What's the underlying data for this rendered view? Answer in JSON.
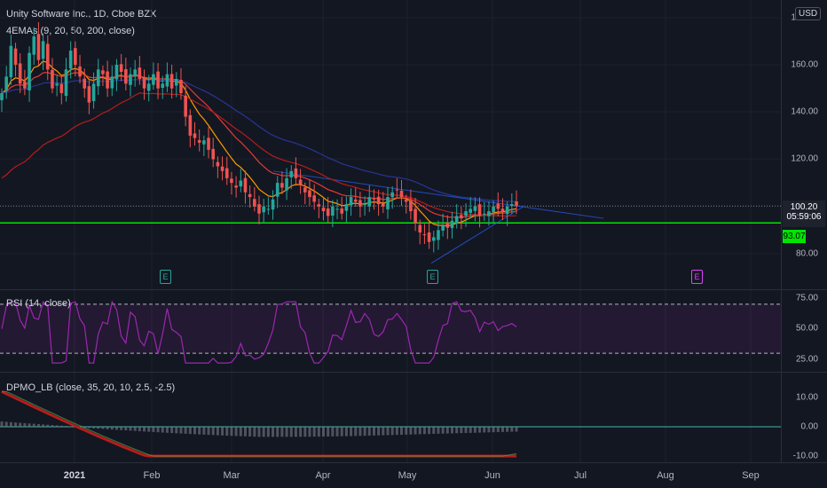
{
  "header": {
    "symbol_line": "Unity Software Inc., 1D, Cboe BZX",
    "indicator": "4EMAs (9, 20, 50, 200, close)"
  },
  "currency_button": "USD",
  "price_axis": {
    "ticks": [
      "180.00",
      "160.00",
      "140.00",
      "120.00",
      "80.00"
    ],
    "last_price": "100.20",
    "countdown": "05:59:06",
    "support_price": "93.07"
  },
  "rsi": {
    "label": "RSI (14, close)",
    "ticks": [
      "75.00",
      "50.00",
      "25.00"
    ]
  },
  "dpmo": {
    "label": "DPMO_LB (close, 35, 20, 10, 2.5, -2.5)",
    "ticks": [
      "10.00",
      "0.00",
      "-10.00"
    ]
  },
  "time_axis": [
    "2021",
    "Feb",
    "Mar",
    "Apr",
    "May",
    "Jun",
    "Jul",
    "Aug",
    "Sep"
  ],
  "earnings_markers": [
    {
      "label": "E",
      "color": "#26a69a"
    },
    {
      "label": "E",
      "color": "#26a69a"
    },
    {
      "label": "E",
      "color": "#e040fb"
    }
  ],
  "colors": {
    "up": "#26a69a",
    "down": "#ef5350",
    "support": "#00e600",
    "ema_fast": "#ff9800",
    "ema_mid": "#e53935",
    "ema_slow": "#283593",
    "rsi": "#9c27b0",
    "dpmo_signal": "#4ce0d2"
  },
  "chart_data": {
    "type": "candlestick",
    "price_axis_range": [
      70,
      185
    ],
    "support_level": 93.07,
    "last_close": 100.2,
    "closes": [
      148,
      155,
      168,
      160,
      152,
      150,
      165,
      172,
      162,
      170,
      158,
      150,
      152,
      148,
      158,
      166,
      160,
      155,
      150,
      144,
      152,
      158,
      156,
      150,
      155,
      160,
      157,
      152,
      156,
      158,
      154,
      150,
      152,
      156,
      150,
      152,
      156,
      150,
      154,
      148,
      138,
      130,
      129,
      127,
      128,
      124,
      120,
      117,
      115,
      112,
      110,
      108,
      111,
      106,
      104,
      100,
      97,
      100,
      99,
      103,
      110,
      108,
      112,
      115,
      112,
      109,
      106,
      104,
      102,
      100,
      98,
      96,
      100,
      99,
      97,
      101,
      104,
      102,
      100,
      101,
      104,
      103,
      101,
      100,
      104,
      106,
      107,
      104,
      102,
      98,
      93,
      89,
      88,
      85,
      87,
      90,
      92,
      91,
      94,
      96,
      95,
      98,
      99,
      100,
      96,
      97,
      98,
      100,
      99,
      98,
      100,
      101,
      100.2
    ]
  }
}
